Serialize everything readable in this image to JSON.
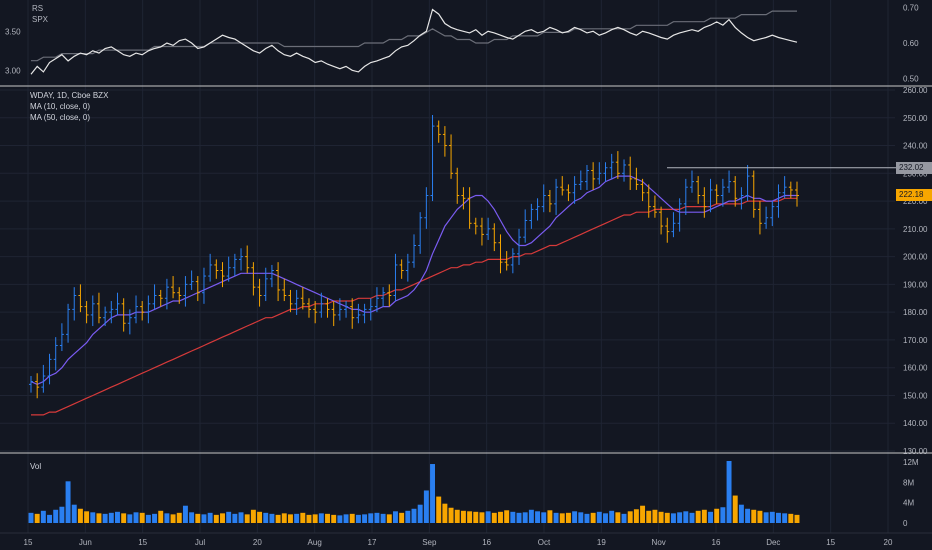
{
  "colors": {
    "background": "#131722",
    "up": "#2a7ff0",
    "down": "#f7a600",
    "ma10": "#7a5cf2",
    "ma50": "#d63a3a",
    "grid": "#1f2433",
    "axis_text": "#b2b5be",
    "divider": "#c8c8c8"
  },
  "rs_panel": {
    "series_a": "RS",
    "series_b": "SPX",
    "left_ticks": [
      "3.50",
      "3.00"
    ],
    "right_ticks": [
      "0.70",
      "0.60",
      "0.50"
    ]
  },
  "legend": {
    "symbol": "WDAY, 1D, Cboe BZX",
    "ma10": "MA (10, close, 0)",
    "ma50": "MA (50, close, 0)"
  },
  "price_axis": {
    "ticks": [
      "260.00",
      "250.00",
      "240.00",
      "230.00",
      "220.00",
      "210.00",
      "200.00",
      "190.00",
      "180.00",
      "170.00",
      "160.00",
      "150.00",
      "140.00",
      "130.00"
    ],
    "resistance_label": "232.02",
    "last_price_label": "222.18"
  },
  "volume_panel": {
    "label": "Vol",
    "ticks": [
      "12M",
      "8M",
      "4M",
      "0"
    ]
  },
  "time_axis": {
    "labels": [
      "15",
      "Jun",
      "15",
      "Jul",
      "20",
      "Aug",
      "17",
      "Sep",
      "16",
      "Oct",
      "19",
      "Nov",
      "16",
      "Dec",
      "15",
      "20"
    ]
  },
  "chart_data": {
    "type": "ohlc",
    "symbol": "WDAY, 1D, Cboe BZX",
    "price_range": [
      130,
      260
    ],
    "volume_range_millions": [
      0,
      12
    ],
    "resistance_level": 232.02,
    "last_close": 222.18,
    "series": [
      {
        "name": "MA (10, close, 0)",
        "role": "ma10"
      },
      {
        "name": "MA (50, close, 0)",
        "role": "ma50"
      }
    ],
    "closes": [
      155,
      153,
      157,
      163,
      168,
      172,
      181,
      186,
      182,
      179,
      183,
      178,
      180,
      181,
      183,
      176,
      178,
      182,
      180,
      183,
      186,
      185,
      189,
      187,
      186,
      190,
      191,
      187,
      193,
      197,
      195,
      193,
      196,
      199,
      200,
      196,
      189,
      186,
      192,
      195,
      188,
      186,
      183,
      185,
      183,
      181,
      180,
      183,
      181,
      179,
      181,
      182,
      178,
      179,
      181,
      182,
      185,
      187,
      186,
      197,
      195,
      198,
      204,
      214,
      222,
      247,
      244,
      240,
      230,
      222,
      221,
      212,
      211,
      208,
      210,
      205,
      198,
      197,
      201,
      207,
      213,
      217,
      218,
      222,
      219,
      225,
      224,
      223,
      226,
      227,
      231,
      228,
      230,
      232,
      234,
      230,
      233,
      228,
      226,
      223,
      218,
      216,
      211,
      209,
      212,
      219,
      225,
      227,
      222,
      218,
      224,
      222,
      225,
      227,
      221,
      222,
      229,
      217,
      212,
      214,
      218,
      223,
      225,
      224,
      222
    ],
    "ma10": [
      155,
      154,
      155,
      157,
      158,
      160,
      163,
      165,
      167,
      169,
      172,
      174,
      176,
      178,
      179,
      179,
      179,
      180,
      180,
      180,
      181,
      182,
      183,
      184,
      184,
      185,
      186,
      187,
      188,
      189,
      190,
      191,
      192,
      193,
      194,
      194,
      194,
      194,
      194,
      194,
      193,
      192,
      191,
      190,
      189,
      188,
      187,
      186,
      185,
      184,
      183,
      182,
      181,
      181,
      180,
      180,
      181,
      182,
      182,
      184,
      185,
      186,
      188,
      191,
      195,
      201,
      206,
      211,
      214,
      217,
      219,
      221,
      222,
      222,
      220,
      217,
      213,
      209,
      206,
      204,
      204,
      205,
      207,
      209,
      211,
      214,
      216,
      218,
      220,
      221,
      223,
      224,
      225,
      227,
      228,
      229,
      229,
      229,
      228,
      227,
      225,
      223,
      221,
      219,
      217,
      216,
      216,
      216,
      216,
      216,
      217,
      218,
      219,
      220,
      220,
      221,
      222,
      221,
      221,
      220,
      220,
      221,
      222,
      222,
      222
    ],
    "ma50": [
      143,
      143,
      143,
      144,
      144,
      145,
      146,
      147,
      148,
      149,
      150,
      151,
      152,
      153,
      154,
      155,
      156,
      157,
      158,
      159,
      160,
      161,
      162,
      163,
      164,
      165,
      166,
      167,
      168,
      169,
      170,
      171,
      172,
      173,
      174,
      175,
      176,
      177,
      178,
      178,
      179,
      180,
      181,
      181,
      182,
      182,
      183,
      183,
      183,
      184,
      184,
      184,
      184,
      185,
      185,
      185,
      186,
      186,
      187,
      188,
      188,
      189,
      190,
      191,
      192,
      193,
      194,
      195,
      196,
      196,
      197,
      197,
      198,
      198,
      199,
      199,
      199,
      199,
      200,
      200,
      201,
      201,
      202,
      203,
      204,
      204,
      205,
      206,
      207,
      208,
      209,
      210,
      211,
      212,
      213,
      214,
      215,
      215,
      216,
      216,
      216,
      217,
      217,
      217,
      217,
      217,
      218,
      218,
      218,
      218,
      218,
      219,
      219,
      219,
      219,
      219,
      220,
      220,
      220,
      220,
      220,
      220,
      221,
      221,
      221
    ],
    "volume_millions": [
      2.0,
      1.8,
      2.4,
      1.6,
      2.6,
      3.2,
      8.2,
      3.6,
      2.8,
      2.3,
      2.1,
      1.9,
      1.8,
      2.0,
      2.2,
      1.9,
      1.7,
      2.1,
      2.0,
      1.6,
      1.8,
      2.4,
      1.9,
      1.7,
      2.0,
      3.4,
      2.1,
      1.8,
      1.7,
      2.0,
      1.6,
      1.9,
      2.2,
      1.8,
      2.1,
      1.7,
      2.6,
      2.2,
      2.0,
      1.8,
      1.6,
      1.9,
      1.7,
      1.8,
      2.0,
      1.6,
      1.7,
      1.9,
      1.8,
      1.6,
      1.5,
      1.7,
      1.8,
      1.6,
      1.7,
      1.9,
      2.0,
      1.8,
      1.7,
      2.3,
      2.0,
      2.4,
      2.8,
      3.6,
      6.4,
      11.6,
      5.2,
      3.8,
      3.0,
      2.6,
      2.4,
      2.3,
      2.2,
      2.1,
      2.3,
      2.0,
      2.2,
      2.5,
      2.2,
      2.0,
      2.1,
      2.6,
      2.3,
      2.1,
      2.5,
      2.0,
      1.9,
      2.0,
      2.3,
      2.1,
      1.8,
      2.0,
      2.2,
      1.9,
      2.4,
      2.1,
      1.8,
      2.3,
      2.7,
      3.4,
      2.4,
      2.6,
      2.2,
      2.0,
      1.9,
      2.1,
      2.3,
      2.0,
      2.4,
      2.6,
      2.2,
      2.8,
      3.1,
      12.2,
      5.4,
      3.6,
      2.8,
      2.6,
      2.4,
      2.1,
      2.2,
      2.0,
      1.9,
      1.8,
      1.6
    ],
    "rs_line": [
      2.95,
      3.05,
      2.98,
      3.1,
      3.15,
      3.2,
      3.12,
      3.18,
      3.22,
      3.2,
      3.25,
      3.22,
      3.28,
      3.3,
      3.25,
      3.2,
      3.18,
      3.22,
      3.2,
      3.25,
      3.28,
      3.3,
      3.35,
      3.32,
      3.38,
      3.4,
      3.35,
      3.28,
      3.3,
      3.35,
      3.4,
      3.45,
      3.42,
      3.4,
      3.35,
      3.3,
      3.25,
      3.22,
      3.28,
      3.32,
      3.25,
      3.2,
      3.18,
      3.22,
      3.18,
      3.15,
      3.1,
      3.12,
      3.08,
      3.05,
      3.02,
      3.05,
      3.0,
      2.98,
      3.05,
      3.1,
      3.12,
      3.15,
      3.18,
      3.25,
      3.3,
      3.32,
      3.38,
      3.45,
      3.5,
      3.78,
      3.72,
      3.6,
      3.55,
      3.52,
      3.5,
      3.48,
      3.52,
      3.45,
      3.5,
      3.48,
      3.45,
      3.42,
      3.4,
      3.45,
      3.5,
      3.52,
      3.48,
      3.5,
      3.55,
      3.52,
      3.48,
      3.5,
      3.55,
      3.52,
      3.48,
      3.5,
      3.45,
      3.48,
      3.52,
      3.55,
      3.52,
      3.48,
      3.45,
      3.5,
      3.48,
      3.45,
      3.42,
      3.4,
      3.45,
      3.48,
      3.5,
      3.52,
      3.5,
      3.55,
      3.58,
      3.62,
      3.58,
      3.65,
      3.55,
      3.48,
      3.42,
      3.38,
      3.4,
      3.42,
      3.45,
      3.42,
      3.4,
      3.38,
      3.36
    ],
    "spx_line": [
      0.55,
      0.55,
      0.56,
      0.56,
      0.56,
      0.57,
      0.57,
      0.57,
      0.57,
      0.57,
      0.57,
      0.58,
      0.58,
      0.58,
      0.58,
      0.58,
      0.58,
      0.58,
      0.58,
      0.58,
      0.59,
      0.59,
      0.59,
      0.59,
      0.59,
      0.59,
      0.59,
      0.59,
      0.59,
      0.6,
      0.6,
      0.6,
      0.6,
      0.6,
      0.6,
      0.6,
      0.6,
      0.6,
      0.6,
      0.6,
      0.6,
      0.59,
      0.59,
      0.59,
      0.59,
      0.59,
      0.59,
      0.59,
      0.59,
      0.59,
      0.59,
      0.59,
      0.59,
      0.59,
      0.6,
      0.6,
      0.6,
      0.6,
      0.61,
      0.61,
      0.61,
      0.62,
      0.62,
      0.62,
      0.63,
      0.64,
      0.63,
      0.62,
      0.62,
      0.61,
      0.61,
      0.61,
      0.6,
      0.6,
      0.6,
      0.61,
      0.61,
      0.61,
      0.62,
      0.62,
      0.62,
      0.62,
      0.62,
      0.63,
      0.63,
      0.63,
      0.63,
      0.63,
      0.64,
      0.64,
      0.64,
      0.64,
      0.64,
      0.64,
      0.64,
      0.64,
      0.64,
      0.64,
      0.65,
      0.65,
      0.65,
      0.65,
      0.65,
      0.65,
      0.66,
      0.66,
      0.66,
      0.66,
      0.66,
      0.66,
      0.67,
      0.67,
      0.67,
      0.67,
      0.67,
      0.68,
      0.68,
      0.68,
      0.68,
      0.68,
      0.69,
      0.69,
      0.69,
      0.69,
      0.69
    ]
  }
}
